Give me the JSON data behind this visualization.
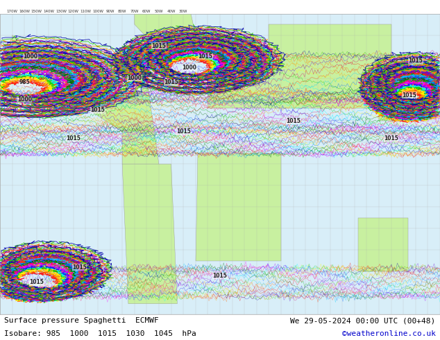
{
  "title_left": "Surface pressure Spaghetti  ECMWF",
  "title_right": "We 29-05-2024 00:00 UTC (00+48)",
  "subtitle": "Isobare: 985  1000  1015  1030  1045  hPa",
  "copyright": "©weatheronline.co.uk",
  "background_land": "#c8f0a0",
  "background_ocean": "#e8f4f8",
  "background_overall": "#d8eef8",
  "grid_color": "#aaaaaa",
  "coast_color": "#888888",
  "text_color": "#000000",
  "title_bg": "#dddddd",
  "bottom_bg": "#dddddd",
  "figsize": [
    6.34,
    4.9
  ],
  "dpi": 100,
  "line_colors": [
    "#ff0000",
    "#ff6600",
    "#ffaa00",
    "#ffff00",
    "#00cc00",
    "#00ffff",
    "#0000ff",
    "#aa00ff",
    "#ff00ff",
    "#ff0066",
    "#00aa00",
    "#006600",
    "#0066ff",
    "#00ccff",
    "#ff3300",
    "#cc0066",
    "#6600cc",
    "#ff9900",
    "#33cc00",
    "#0000aa"
  ],
  "isobar_labels": [
    "985",
    "1000",
    "1015",
    "1030",
    "1045"
  ],
  "label_fontsize": 5.5,
  "title_fontsize": 8,
  "subtitle_fontsize": 8
}
